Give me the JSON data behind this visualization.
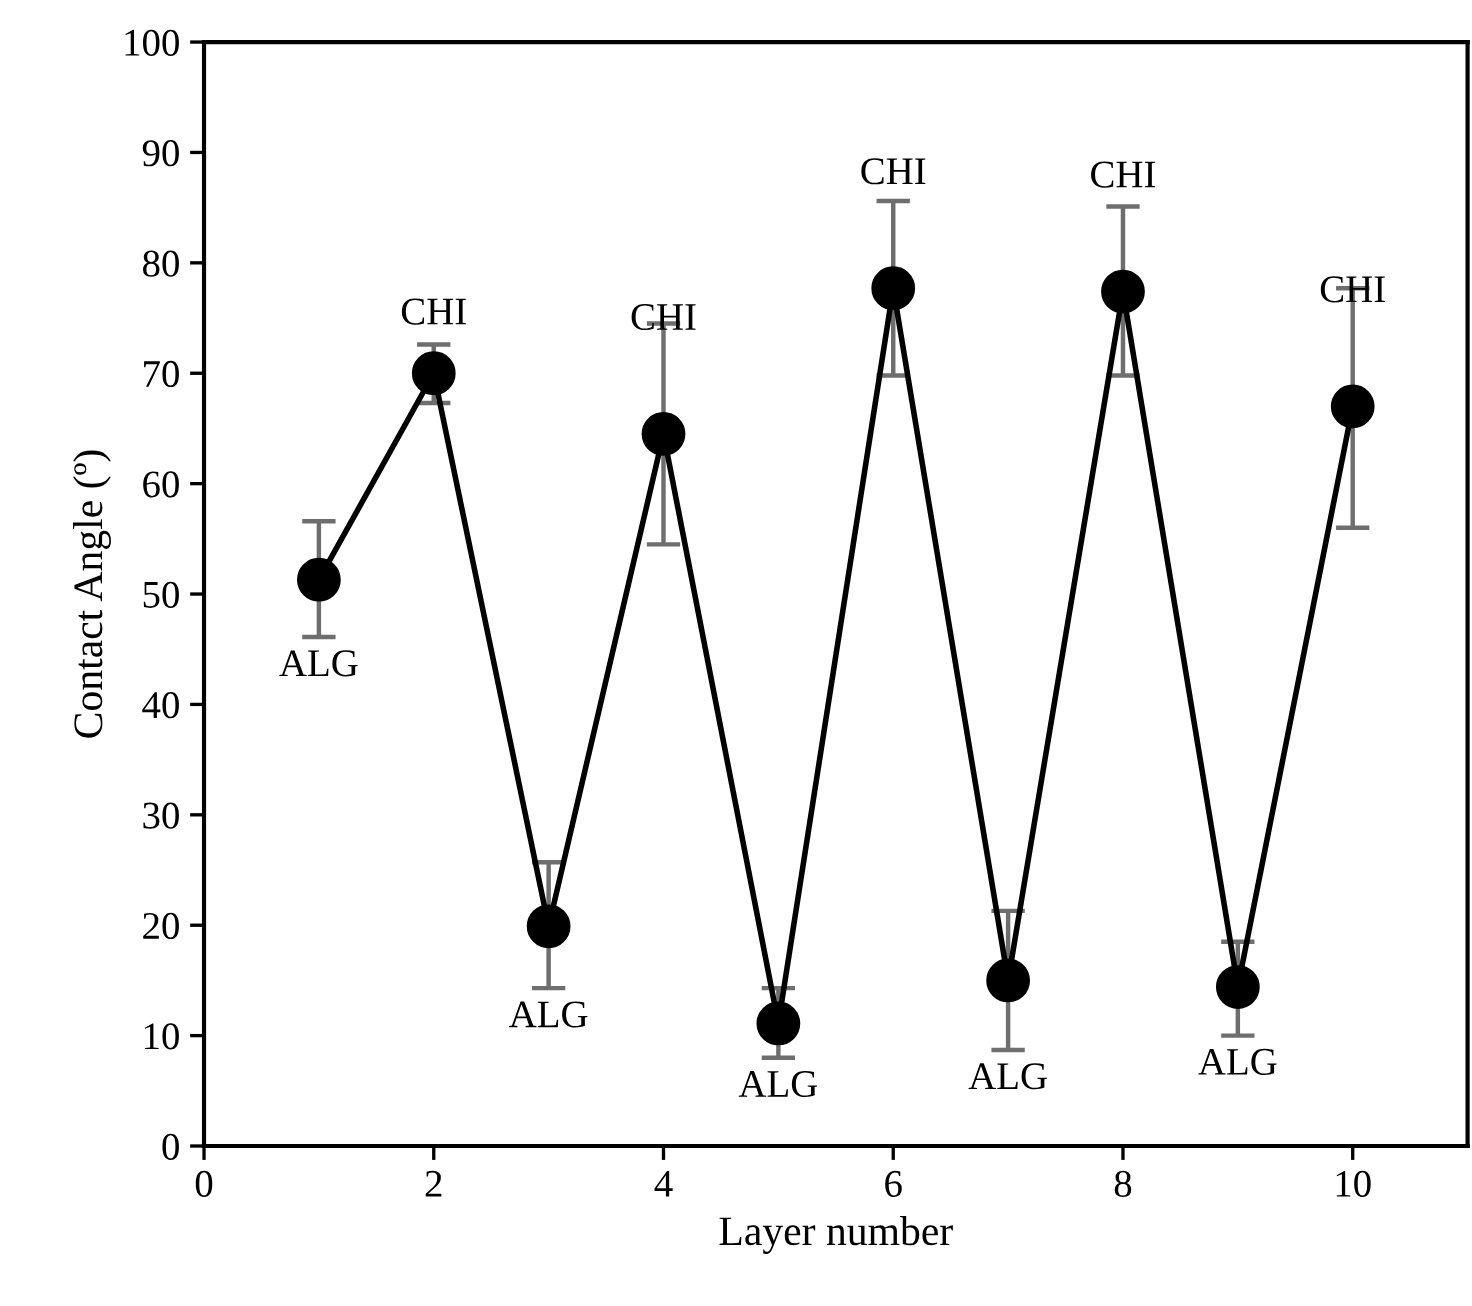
{
  "chart_data": {
    "type": "line",
    "xlabel": "Layer number",
    "ylabel": "Contact Angle (º)",
    "x": [
      1,
      2,
      3,
      4,
      5,
      6,
      7,
      8,
      9,
      10
    ],
    "series": [
      {
        "color": "#000000",
        "values": [
          51.3,
          70.0,
          19.9,
          64.5,
          11.1,
          77.7,
          15.0,
          77.4,
          14.4,
          67.0
        ],
        "errors": [
          [
            46.1,
            56.6
          ],
          [
            67.3,
            72.6
          ],
          [
            14.3,
            25.7
          ],
          [
            54.5,
            74.5
          ],
          [
            8.0,
            14.3
          ],
          [
            69.8,
            85.6
          ],
          [
            8.7,
            21.3
          ],
          [
            69.8,
            85.1
          ],
          [
            10.0,
            18.5
          ],
          [
            56.0,
            77.7
          ]
        ]
      }
    ],
    "marker": "circle",
    "line_style": "solid",
    "grid": false,
    "legend": false,
    "xlim": [
      0,
      11
    ],
    "xticks": [
      0,
      2,
      4,
      6,
      8,
      10
    ],
    "ylim": [
      0,
      100
    ],
    "yticks": [
      0,
      10,
      20,
      30,
      40,
      50,
      60,
      70,
      80,
      90,
      100
    ],
    "annotations": [
      {
        "text": "ALG",
        "x": 1,
        "y": 51.3
      },
      {
        "text": "CHI",
        "x": 2,
        "y": 70.0
      },
      {
        "text": "ALG",
        "x": 3,
        "y": 19.9
      },
      {
        "text": "CHI",
        "x": 4,
        "y": 64.5
      },
      {
        "text": "ALG",
        "x": 5,
        "y": 11.1
      },
      {
        "text": "CHI",
        "x": 6,
        "y": 77.7
      },
      {
        "text": "ALG",
        "x": 7,
        "y": 15.0
      },
      {
        "text": "CHI",
        "x": 8,
        "y": 77.4
      },
      {
        "text": "ALG",
        "x": 9,
        "y": 14.4
      },
      {
        "text": "CHI",
        "x": 10,
        "y": 67.0
      }
    ]
  }
}
